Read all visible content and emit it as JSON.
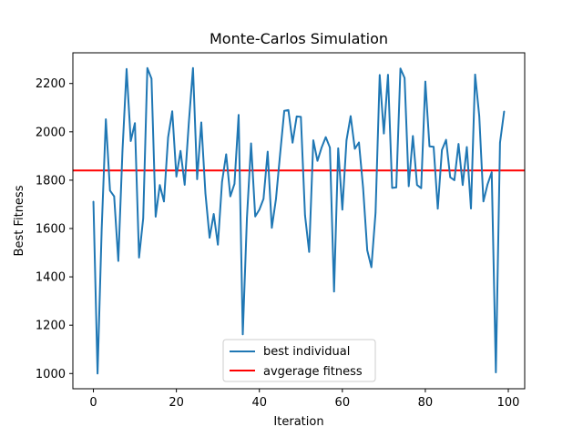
{
  "chart_data": {
    "type": "line",
    "title": "Monte-Carlos Simulation",
    "xlabel": "Iteration",
    "ylabel": "Best Fitness",
    "xlim": [
      -4.95,
      103.95
    ],
    "ylim": [
      937,
      2327
    ],
    "xticks": [
      0,
      20,
      40,
      60,
      80,
      100
    ],
    "yticks": [
      1000,
      1200,
      1400,
      1600,
      1800,
      2000,
      2200
    ],
    "grid": false,
    "legend_position": "lower center",
    "series": [
      {
        "name": "best individual",
        "color": "#1f77b4",
        "x": [
          0,
          1,
          2,
          3,
          4,
          5,
          6,
          7,
          8,
          9,
          10,
          11,
          12,
          13,
          14,
          15,
          16,
          17,
          18,
          19,
          20,
          21,
          22,
          23,
          24,
          25,
          26,
          27,
          28,
          29,
          30,
          31,
          32,
          33,
          34,
          35,
          36,
          37,
          38,
          39,
          40,
          41,
          42,
          43,
          44,
          45,
          46,
          47,
          48,
          49,
          50,
          51,
          52,
          53,
          54,
          55,
          56,
          57,
          58,
          59,
          60,
          61,
          62,
          63,
          64,
          65,
          66,
          67,
          68,
          69,
          70,
          71,
          72,
          73,
          74,
          75,
          76,
          77,
          78,
          79,
          80,
          81,
          82,
          83,
          84,
          85,
          86,
          87,
          88,
          89,
          90,
          91,
          92,
          93,
          94,
          95,
          96,
          97,
          98,
          99
        ],
        "y": [
          1712,
          1000,
          1600,
          2052,
          1757,
          1733,
          1466,
          1920,
          2260,
          1962,
          2036,
          1480,
          1642,
          2264,
          2220,
          1649,
          1780,
          1712,
          1977,
          2085,
          1815,
          1921,
          1781,
          2038,
          2264,
          1804,
          2039,
          1745,
          1562,
          1660,
          1533,
          1793,
          1907,
          1733,
          1785,
          2070,
          1162,
          1643,
          1952,
          1650,
          1678,
          1723,
          1918,
          1603,
          1722,
          1908,
          2087,
          2090,
          1955,
          2064,
          2062,
          1655,
          1503,
          1965,
          1880,
          1935,
          1978,
          1935,
          1339,
          1932,
          1678,
          1965,
          2065,
          1930,
          1956,
          1768,
          1510,
          1440,
          1665,
          2235,
          1993,
          2236,
          1768,
          1770,
          2262,
          2223,
          1775,
          1983,
          1780,
          1767,
          2208,
          1940,
          1938,
          1682,
          1925,
          1967,
          1812,
          1800,
          1950,
          1780,
          1937,
          1683,
          2237,
          2065,
          1712,
          1783,
          1833,
          1005,
          1955,
          2085
        ]
      },
      {
        "name": "avgerage fitness",
        "color": "#ff0000",
        "y": 1840
      }
    ]
  }
}
